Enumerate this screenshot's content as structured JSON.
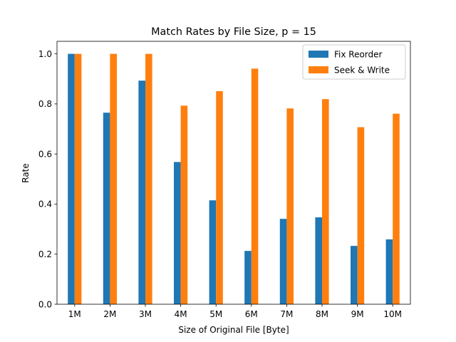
{
  "chart_data": {
    "type": "bar",
    "title": "Match Rates by File Size, p = 15",
    "xlabel": "Size of Original File [Byte]",
    "ylabel": "Rate",
    "categories": [
      "1M",
      "2M",
      "3M",
      "4M",
      "5M",
      "6M",
      "7M",
      "8M",
      "9M",
      "10M"
    ],
    "series": [
      {
        "name": "Fix Reorder",
        "color": "#1f77b4",
        "values": [
          1.0,
          0.765,
          0.893,
          0.568,
          0.415,
          0.213,
          0.341,
          0.347,
          0.233,
          0.259
        ]
      },
      {
        "name": "Seek & Write",
        "color": "#ff7f0e",
        "values": [
          1.0,
          1.0,
          1.0,
          0.793,
          0.851,
          0.941,
          0.782,
          0.819,
          0.707,
          0.761
        ]
      }
    ],
    "ylim": [
      0,
      1.05
    ],
    "yticks": [
      "0.0",
      "0.2",
      "0.4",
      "0.6",
      "0.8",
      "1.0"
    ],
    "grid": false,
    "legend_position": "top-right"
  }
}
